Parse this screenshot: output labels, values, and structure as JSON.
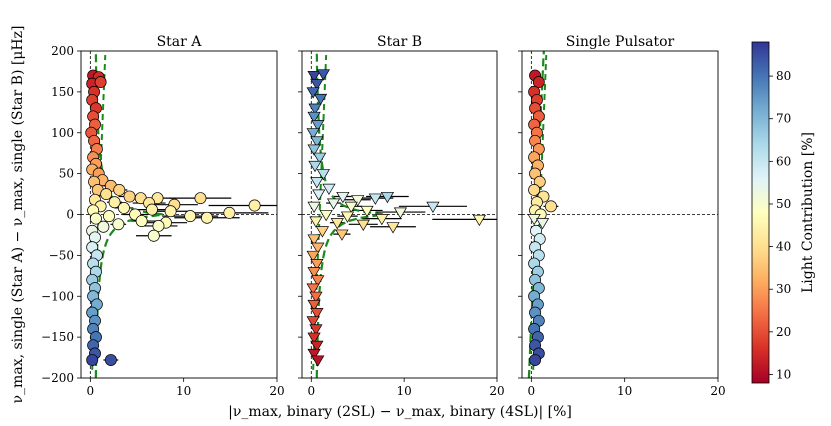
{
  "chart_data": {
    "type": "scatter",
    "xlabel": "|ν_max, binary (2SL) − ν_max, binary (4SL)| [%]",
    "ylabel": "ν_max, single (Star A) − ν_max, single (Star B) [μHz]",
    "xlim": [
      -1,
      20
    ],
    "ylim": [
      -200,
      200
    ],
    "xticks": [
      "0",
      "10",
      "20"
    ],
    "yticks": [
      "200",
      "150",
      "100",
      "50",
      "0",
      "−50",
      "−100",
      "−150",
      "−200"
    ],
    "colorbar": {
      "label": "Light Contribution [%]",
      "range": [
        8,
        88
      ],
      "ticks": [
        "80",
        "70",
        "60",
        "50",
        "40",
        "30",
        "20",
        "10"
      ],
      "cmap": "RdYlBu"
    },
    "panels": [
      {
        "title": "Star A",
        "marker": "circle",
        "points": [
          {
            "x": 0.3,
            "y": 170,
            "c": 12
          },
          {
            "x": 0.9,
            "y": 168,
            "c": 15
          },
          {
            "x": 0.2,
            "y": 160,
            "c": 14
          },
          {
            "x": 1.1,
            "y": 162,
            "c": 18
          },
          {
            "x": 0.4,
            "y": 150,
            "c": 16
          },
          {
            "x": 0.2,
            "y": 140,
            "c": 18
          },
          {
            "x": 0.6,
            "y": 130,
            "c": 17
          },
          {
            "x": 0.3,
            "y": 120,
            "c": 20
          },
          {
            "x": 0.5,
            "y": 110,
            "c": 22
          },
          {
            "x": 0.1,
            "y": 100,
            "c": 21
          },
          {
            "x": 0.4,
            "y": 90,
            "c": 23
          },
          {
            "x": 0.7,
            "y": 80,
            "c": 26
          },
          {
            "x": 0.3,
            "y": 70,
            "c": 28
          },
          {
            "x": 0.6,
            "y": 62,
            "c": 30
          },
          {
            "x": 0.2,
            "y": 55,
            "c": 32
          },
          {
            "x": 0.9,
            "y": 50,
            "c": 30
          },
          {
            "x": 1.3,
            "y": 42,
            "c": 33
          },
          {
            "x": 0.4,
            "y": 40,
            "c": 35
          },
          {
            "x": 2.2,
            "y": 35,
            "c": 34
          },
          {
            "x": 0.8,
            "y": 30,
            "c": 36
          },
          {
            "x": 3.1,
            "y": 30,
            "c": 38
          },
          {
            "x": 1.7,
            "y": 25,
            "c": 40
          },
          {
            "x": 4.2,
            "y": 22,
            "c": 38
          },
          {
            "x": 5.4,
            "y": 20,
            "c": 40
          },
          {
            "x": 7.2,
            "y": 20,
            "c": 42
          },
          {
            "x": 11.8,
            "y": 20,
            "c": 40
          },
          {
            "x": 0.5,
            "y": 18,
            "c": 42
          },
          {
            "x": 2.6,
            "y": 15,
            "c": 44
          },
          {
            "x": 6.3,
            "y": 14,
            "c": 42
          },
          {
            "x": 9.0,
            "y": 12,
            "c": 40
          },
          {
            "x": 17.6,
            "y": 11,
            "c": 44
          },
          {
            "x": 1.1,
            "y": 10,
            "c": 45
          },
          {
            "x": 3.6,
            "y": 8,
            "c": 46
          },
          {
            "x": 6.6,
            "y": 6,
            "c": 44
          },
          {
            "x": 0.3,
            "y": 5,
            "c": 47
          },
          {
            "x": 8.6,
            "y": 4,
            "c": 45
          },
          {
            "x": 14.9,
            "y": 2,
            "c": 44
          },
          {
            "x": 4.8,
            "y": 0,
            "c": 47
          },
          {
            "x": 2.0,
            "y": -2,
            "c": 48
          },
          {
            "x": 10.7,
            "y": -2,
            "c": 46
          },
          {
            "x": 12.5,
            "y": -4,
            "c": 45
          },
          {
            "x": 0.6,
            "y": -5,
            "c": 49
          },
          {
            "x": 5.5,
            "y": -8,
            "c": 48
          },
          {
            "x": 8.1,
            "y": -10,
            "c": 47
          },
          {
            "x": 3.0,
            "y": -12,
            "c": 50
          },
          {
            "x": 1.4,
            "y": -15,
            "c": 52
          },
          {
            "x": 7.3,
            "y": -14,
            "c": 49
          },
          {
            "x": 0.2,
            "y": -20,
            "c": 53
          },
          {
            "x": 6.8,
            "y": -26,
            "c": 50
          },
          {
            "x": 0.5,
            "y": -28,
            "c": 55
          },
          {
            "x": 0.2,
            "y": -40,
            "c": 57
          },
          {
            "x": 0.7,
            "y": -50,
            "c": 60
          },
          {
            "x": 0.3,
            "y": -60,
            "c": 62
          },
          {
            "x": 0.6,
            "y": -70,
            "c": 64
          },
          {
            "x": 0.2,
            "y": -80,
            "c": 66
          },
          {
            "x": 0.5,
            "y": -90,
            "c": 68
          },
          {
            "x": 0.3,
            "y": -100,
            "c": 70
          },
          {
            "x": 0.7,
            "y": -110,
            "c": 72
          },
          {
            "x": 0.2,
            "y": -120,
            "c": 74
          },
          {
            "x": 0.5,
            "y": -130,
            "c": 76
          },
          {
            "x": 0.3,
            "y": -140,
            "c": 78
          },
          {
            "x": 0.6,
            "y": -150,
            "c": 80
          },
          {
            "x": 0.3,
            "y": -160,
            "c": 82
          },
          {
            "x": 0.5,
            "y": -170,
            "c": 84
          },
          {
            "x": 0.2,
            "y": -178,
            "c": 86
          },
          {
            "x": 2.2,
            "y": -178,
            "c": 85
          }
        ]
      },
      {
        "title": "Star B",
        "marker": "triangle-down",
        "points": [
          {
            "x": 0.3,
            "y": 170,
            "c": 86
          },
          {
            "x": 1.3,
            "y": 172,
            "c": 84
          },
          {
            "x": 0.6,
            "y": 160,
            "c": 84
          },
          {
            "x": 0.2,
            "y": 150,
            "c": 82
          },
          {
            "x": 1.0,
            "y": 142,
            "c": 80
          },
          {
            "x": 0.4,
            "y": 130,
            "c": 78
          },
          {
            "x": 0.3,
            "y": 120,
            "c": 76
          },
          {
            "x": 0.7,
            "y": 110,
            "c": 74
          },
          {
            "x": 0.2,
            "y": 100,
            "c": 72
          },
          {
            "x": 0.6,
            "y": 90,
            "c": 70
          },
          {
            "x": 0.3,
            "y": 80,
            "c": 68
          },
          {
            "x": 0.9,
            "y": 70,
            "c": 66
          },
          {
            "x": 0.4,
            "y": 60,
            "c": 64
          },
          {
            "x": 1.3,
            "y": 50,
            "c": 62
          },
          {
            "x": 0.6,
            "y": 40,
            "c": 60
          },
          {
            "x": 1.9,
            "y": 32,
            "c": 58
          },
          {
            "x": 0.8,
            "y": 25,
            "c": 57
          },
          {
            "x": 3.4,
            "y": 22,
            "c": 55
          },
          {
            "x": 5.0,
            "y": 18,
            "c": 52
          },
          {
            "x": 6.9,
            "y": 20,
            "c": 60
          },
          {
            "x": 8.2,
            "y": 22,
            "c": 64
          },
          {
            "x": 2.4,
            "y": 14,
            "c": 54
          },
          {
            "x": 4.3,
            "y": 10,
            "c": 50
          },
          {
            "x": 13.1,
            "y": 10,
            "c": 60
          },
          {
            "x": 0.3,
            "y": 10,
            "c": 53
          },
          {
            "x": 6.0,
            "y": 5,
            "c": 48
          },
          {
            "x": 9.6,
            "y": 3,
            "c": 52
          },
          {
            "x": 1.6,
            "y": 0,
            "c": 49
          },
          {
            "x": 3.9,
            "y": -2,
            "c": 46
          },
          {
            "x": 7.6,
            "y": -5,
            "c": 44
          },
          {
            "x": 18.1,
            "y": -6,
            "c": 46
          },
          {
            "x": 0.5,
            "y": -8,
            "c": 45
          },
          {
            "x": 2.8,
            "y": -10,
            "c": 42
          },
          {
            "x": 5.6,
            "y": -12,
            "c": 40
          },
          {
            "x": 8.8,
            "y": -15,
            "c": 42
          },
          {
            "x": 1.2,
            "y": -20,
            "c": 38
          },
          {
            "x": 3.3,
            "y": -24,
            "c": 36
          },
          {
            "x": 0.3,
            "y": -30,
            "c": 35
          },
          {
            "x": 0.7,
            "y": -40,
            "c": 33
          },
          {
            "x": 0.2,
            "y": -50,
            "c": 31
          },
          {
            "x": 0.6,
            "y": -60,
            "c": 30
          },
          {
            "x": 0.3,
            "y": -70,
            "c": 28
          },
          {
            "x": 0.7,
            "y": -80,
            "c": 27
          },
          {
            "x": 0.2,
            "y": -90,
            "c": 25
          },
          {
            "x": 0.5,
            "y": -100,
            "c": 24
          },
          {
            "x": 0.3,
            "y": -110,
            "c": 22
          },
          {
            "x": 0.6,
            "y": -120,
            "c": 20
          },
          {
            "x": 0.2,
            "y": -130,
            "c": 19
          },
          {
            "x": 0.5,
            "y": -140,
            "c": 17
          },
          {
            "x": 0.3,
            "y": -150,
            "c": 16
          },
          {
            "x": 0.6,
            "y": -160,
            "c": 14
          },
          {
            "x": 0.3,
            "y": -170,
            "c": 12
          },
          {
            "x": 0.7,
            "y": -178,
            "c": 11
          }
        ]
      },
      {
        "title": "Single Pulsator",
        "marker": "mixed",
        "points": [
          {
            "x": 0.4,
            "y": 170,
            "c": 12,
            "m": "circle"
          },
          {
            "x": 0.8,
            "y": 162,
            "c": 14,
            "m": "circle"
          },
          {
            "x": 0.3,
            "y": 150,
            "c": 16,
            "m": "circle"
          },
          {
            "x": 0.6,
            "y": 140,
            "c": 18,
            "m": "circle"
          },
          {
            "x": 0.4,
            "y": 130,
            "c": 20,
            "m": "circle"
          },
          {
            "x": 0.8,
            "y": 120,
            "c": 22,
            "m": "circle"
          },
          {
            "x": 0.3,
            "y": 110,
            "c": 23,
            "m": "circle"
          },
          {
            "x": 0.6,
            "y": 100,
            "c": 25,
            "m": "circle"
          },
          {
            "x": 0.4,
            "y": 90,
            "c": 27,
            "m": "circle"
          },
          {
            "x": 0.8,
            "y": 80,
            "c": 29,
            "m": "circle"
          },
          {
            "x": 0.3,
            "y": 70,
            "c": 31,
            "m": "circle"
          },
          {
            "x": 0.7,
            "y": 60,
            "c": 33,
            "m": "circle"
          },
          {
            "x": 0.4,
            "y": 50,
            "c": 35,
            "m": "circle"
          },
          {
            "x": 0.9,
            "y": 40,
            "c": 37,
            "m": "circle"
          },
          {
            "x": 0.3,
            "y": 30,
            "c": 39,
            "m": "circle"
          },
          {
            "x": 1.3,
            "y": 22,
            "c": 41,
            "m": "circle"
          },
          {
            "x": 0.6,
            "y": 15,
            "c": 43,
            "m": "circle"
          },
          {
            "x": 2.1,
            "y": 10,
            "c": 40,
            "m": "circle"
          },
          {
            "x": 0.4,
            "y": 5,
            "c": 45,
            "m": "circle"
          },
          {
            "x": 1.0,
            "y": 0,
            "c": 47,
            "m": "circle"
          },
          {
            "x": 0.3,
            "y": -5,
            "c": 52,
            "m": "triangle-down"
          },
          {
            "x": 1.2,
            "y": -10,
            "c": 54,
            "m": "triangle-down"
          },
          {
            "x": 0.5,
            "y": -20,
            "c": 56,
            "m": "circle"
          },
          {
            "x": 0.9,
            "y": -30,
            "c": 58,
            "m": "circle"
          },
          {
            "x": 0.4,
            "y": -40,
            "c": 60,
            "m": "circle"
          },
          {
            "x": 0.8,
            "y": -50,
            "c": 62,
            "m": "circle"
          },
          {
            "x": 0.3,
            "y": -60,
            "c": 64,
            "m": "circle"
          },
          {
            "x": 0.7,
            "y": -70,
            "c": 66,
            "m": "circle"
          },
          {
            "x": 0.4,
            "y": -80,
            "c": 68,
            "m": "circle"
          },
          {
            "x": 0.8,
            "y": -90,
            "c": 70,
            "m": "circle"
          },
          {
            "x": 0.3,
            "y": -100,
            "c": 72,
            "m": "circle"
          },
          {
            "x": 0.7,
            "y": -110,
            "c": 74,
            "m": "circle"
          },
          {
            "x": 0.4,
            "y": -120,
            "c": 76,
            "m": "circle"
          },
          {
            "x": 0.8,
            "y": -130,
            "c": 78,
            "m": "circle"
          },
          {
            "x": 0.3,
            "y": -140,
            "c": 80,
            "m": "circle"
          },
          {
            "x": 0.7,
            "y": -150,
            "c": 82,
            "m": "circle"
          },
          {
            "x": 0.4,
            "y": -160,
            "c": 84,
            "m": "circle"
          },
          {
            "x": 0.8,
            "y": -170,
            "c": 85,
            "m": "circle"
          },
          {
            "x": 0.4,
            "y": -178,
            "c": 86,
            "m": "circle"
          }
        ]
      }
    ]
  }
}
